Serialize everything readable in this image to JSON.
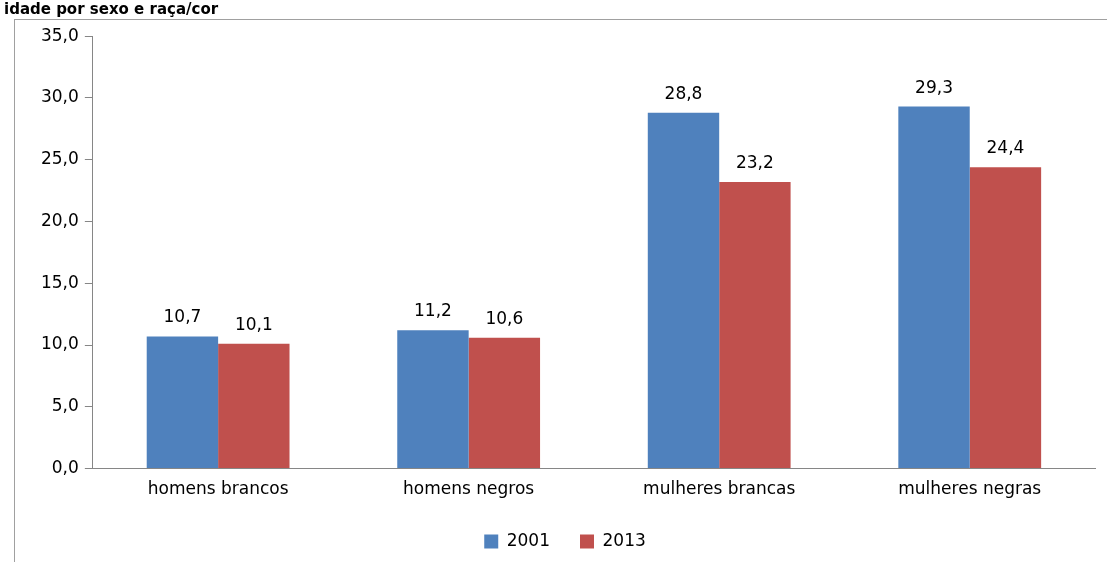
{
  "chart_data": {
    "type": "bar",
    "title": "idade por sexo e raça/cor",
    "categories": [
      "homens brancos",
      "homens negros",
      "mulheres brancas",
      "mulheres negras"
    ],
    "series": [
      {
        "name": "2001",
        "color": "#4f81bd",
        "values": [
          10.7,
          11.2,
          28.8,
          29.3
        ],
        "value_labels": [
          "10,7",
          "11,2",
          "28,8",
          "29,3"
        ]
      },
      {
        "name": "2013",
        "color": "#c0504d",
        "values": [
          10.1,
          10.6,
          23.2,
          24.4
        ],
        "value_labels": [
          "10,1",
          "10,6",
          "23,2",
          "24,4"
        ]
      }
    ],
    "ylim": [
      0,
      35
    ],
    "yticks": [
      {
        "value": 0,
        "label": "0,0"
      },
      {
        "value": 5,
        "label": "5,0"
      },
      {
        "value": 10,
        "label": "10,0"
      },
      {
        "value": 15,
        "label": "15,0"
      },
      {
        "value": 20,
        "label": "20,0"
      },
      {
        "value": 25,
        "label": "25,0"
      },
      {
        "value": 30,
        "label": "30,0"
      },
      {
        "value": 35,
        "label": "35,0"
      }
    ],
    "grid": false,
    "legend": "bottom"
  }
}
